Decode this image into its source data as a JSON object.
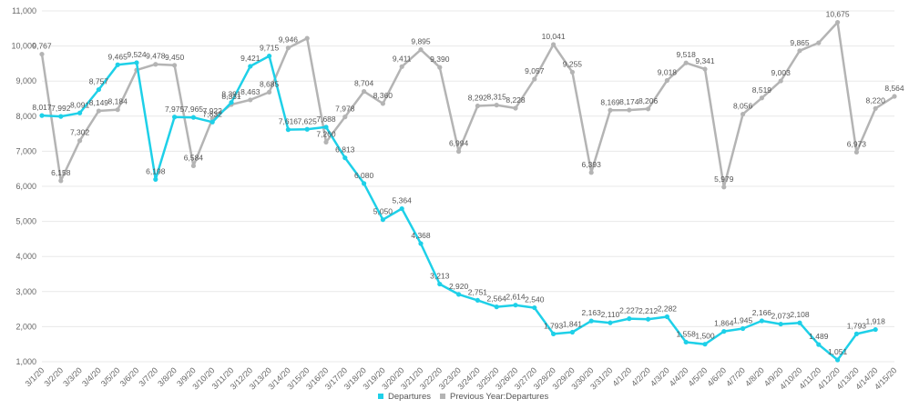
{
  "chart_data": {
    "type": "line",
    "title": "",
    "xlabel": "",
    "ylabel": "",
    "ylim": [
      1000,
      11000
    ],
    "yticks": [
      "1,000",
      "2,000",
      "3,000",
      "4,000",
      "5,000",
      "6,000",
      "7,000",
      "8,000",
      "9,000",
      "10,000",
      "11,000"
    ],
    "grid": true,
    "legend_position": "bottom",
    "categories": [
      "3/1/20",
      "3/2/20",
      "3/3/20",
      "3/4/20",
      "3/5/20",
      "3/6/20",
      "3/7/20",
      "3/8/20",
      "3/9/20",
      "3/10/20",
      "3/11/20",
      "3/12/20",
      "3/13/20",
      "3/14/20",
      "3/15/20",
      "3/16/20",
      "3/17/20",
      "3/18/20",
      "3/19/20",
      "3/20/20",
      "3/21/20",
      "3/22/20",
      "3/23/20",
      "3/24/20",
      "3/25/20",
      "3/26/20",
      "3/27/20",
      "3/28/20",
      "3/29/20",
      "3/30/20",
      "3/31/20",
      "4/1/20",
      "4/2/20",
      "4/3/20",
      "4/4/20",
      "4/5/20",
      "4/6/20",
      "4/7/20",
      "4/8/20",
      "4/9/20",
      "4/10/20",
      "4/11/20",
      "4/12/20",
      "4/13/20",
      "4/14/20",
      "4/15/20"
    ],
    "series": [
      {
        "name": "Departures",
        "color": "#1ed0e8",
        "values": [
          8017,
          7992,
          8091,
          8757,
          9465,
          9524,
          6198,
          7975,
          7965,
          7832,
          8391,
          9421,
          9715,
          7616,
          7625,
          7688,
          6813,
          6080,
          5050,
          5364,
          4368,
          3213,
          2920,
          2751,
          2564,
          2614,
          2540,
          1793,
          1841,
          2163,
          2110,
          2227,
          2212,
          2282,
          1558,
          1500,
          1864,
          1945,
          2166,
          2073,
          2108,
          1489,
          1051,
          1793,
          1918,
          null
        ],
        "labels": [
          "8,017",
          "7,992",
          "8,091",
          "8,757",
          "9,465",
          "9,524",
          "6,198",
          "7,975",
          "7,965",
          "7,832",
          "8,391",
          "9,421",
          "9,715",
          "7,616",
          "7,625",
          "7,688",
          "6,813",
          "6,080",
          "5,050",
          "5,364",
          "4,368",
          "3,213",
          "2,920",
          "2,751",
          "2,564",
          "2,614",
          "2,540",
          "1,793",
          "1,841",
          "2,163",
          "2,110",
          "2,227",
          "2,212",
          "2,282",
          "1,558",
          "1,500",
          "1,864",
          "1,945",
          "2,166",
          "2,073",
          "2,108",
          "1,489",
          "1,051",
          "1,793",
          "1,918",
          ""
        ]
      },
      {
        "name": "Previous Year:Departures",
        "color": "#b4b4b4",
        "values": [
          9767,
          6158,
          7302,
          8149,
          8184,
          9314,
          9478,
          9450,
          6584,
          7922,
          8331,
          8463,
          8685,
          9946,
          10220,
          7260,
          7978,
          8704,
          8360,
          9411,
          9895,
          9390,
          6994,
          8292,
          8315,
          8228,
          9057,
          10041,
          9255,
          6393,
          8169,
          8174,
          8206,
          9018,
          9518,
          9341,
          5979,
          8056,
          8519,
          9003,
          9865,
          10090,
          10675,
          6973,
          8220,
          8564
        ],
        "labels": [
          "9,767",
          "6,158",
          "7,302",
          "8,149",
          "8,184",
          "",
          "9,478",
          "9,450",
          "6,584",
          "7,922",
          "8,331",
          "8,463",
          "8,685",
          "9,946",
          "",
          "7,260",
          "7,978",
          "8,704",
          "8,360",
          "9,411",
          "9,895",
          "9,390",
          "6,994",
          "8,292",
          "8,315",
          "8,228",
          "9,057",
          "10,041",
          "9,255",
          "6,393",
          "8,169",
          "8,174",
          "8,206",
          "9,018",
          "9,518",
          "9,341",
          "5,979",
          "8,056",
          "8,519",
          "9,003",
          "9,865",
          "",
          "10,675",
          "6,973",
          "8,220",
          "8,564"
        ]
      }
    ]
  }
}
